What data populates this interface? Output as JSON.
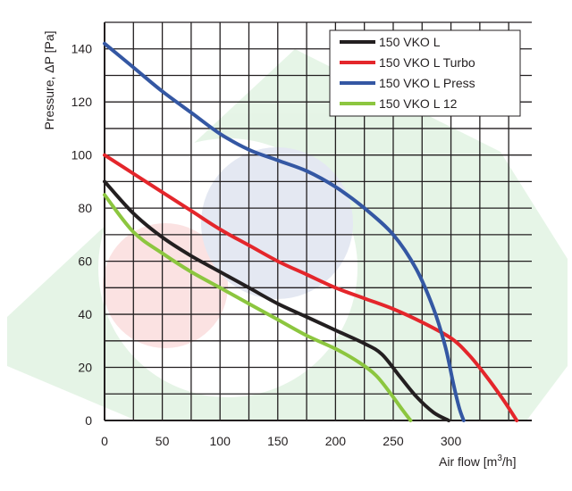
{
  "chart_data": {
    "type": "line",
    "xlabel": "Air flow [m",
    "xlabel_sup": "3",
    "xlabel_tail": "/h]",
    "ylabel": "Pressure, ΔP [Pa]",
    "xlim": [
      0,
      370
    ],
    "ylim": [
      0,
      150
    ],
    "x_ticks": [
      0,
      50,
      100,
      150,
      200,
      250,
      300
    ],
    "y_ticks": [
      0,
      20,
      40,
      60,
      80,
      100,
      120,
      140
    ],
    "x_grid_step": 25,
    "y_grid_step": 10,
    "grid": true,
    "legend_position": "top-right",
    "series": [
      {
        "name": "150 VKO L",
        "color": "#231f20",
        "points": [
          [
            0,
            90
          ],
          [
            25,
            78
          ],
          [
            50,
            69
          ],
          [
            75,
            62
          ],
          [
            100,
            56
          ],
          [
            125,
            50
          ],
          [
            150,
            44
          ],
          [
            175,
            39
          ],
          [
            200,
            34
          ],
          [
            225,
            29
          ],
          [
            240,
            25
          ],
          [
            255,
            17
          ],
          [
            270,
            9
          ],
          [
            285,
            3
          ],
          [
            298,
            0
          ]
        ]
      },
      {
        "name": "150 VKO L Turbo",
        "color": "#e4262b",
        "points": [
          [
            0,
            100
          ],
          [
            25,
            93
          ],
          [
            50,
            86
          ],
          [
            75,
            79
          ],
          [
            100,
            72
          ],
          [
            125,
            66
          ],
          [
            150,
            60
          ],
          [
            175,
            55
          ],
          [
            200,
            50
          ],
          [
            225,
            46
          ],
          [
            250,
            42
          ],
          [
            275,
            37
          ],
          [
            300,
            31
          ],
          [
            315,
            25
          ],
          [
            330,
            17
          ],
          [
            345,
            8
          ],
          [
            357,
            0
          ]
        ]
      },
      {
        "name": "150 VKO L Press",
        "color": "#3457a3",
        "points": [
          [
            0,
            142
          ],
          [
            25,
            133
          ],
          [
            50,
            124
          ],
          [
            75,
            116
          ],
          [
            100,
            108
          ],
          [
            125,
            102
          ],
          [
            150,
            98
          ],
          [
            175,
            94
          ],
          [
            200,
            88
          ],
          [
            225,
            80
          ],
          [
            250,
            70
          ],
          [
            270,
            57
          ],
          [
            285,
            42
          ],
          [
            295,
            28
          ],
          [
            302,
            14
          ],
          [
            307,
            5
          ],
          [
            311,
            0
          ]
        ]
      },
      {
        "name": "150 VKO L 12",
        "color": "#8cc63f",
        "points": [
          [
            0,
            85
          ],
          [
            25,
            71
          ],
          [
            50,
            63
          ],
          [
            75,
            56
          ],
          [
            100,
            50
          ],
          [
            125,
            44
          ],
          [
            150,
            38
          ],
          [
            175,
            32
          ],
          [
            200,
            27
          ],
          [
            220,
            22
          ],
          [
            235,
            17
          ],
          [
            248,
            10
          ],
          [
            258,
            4
          ],
          [
            265,
            0
          ]
        ]
      }
    ]
  }
}
